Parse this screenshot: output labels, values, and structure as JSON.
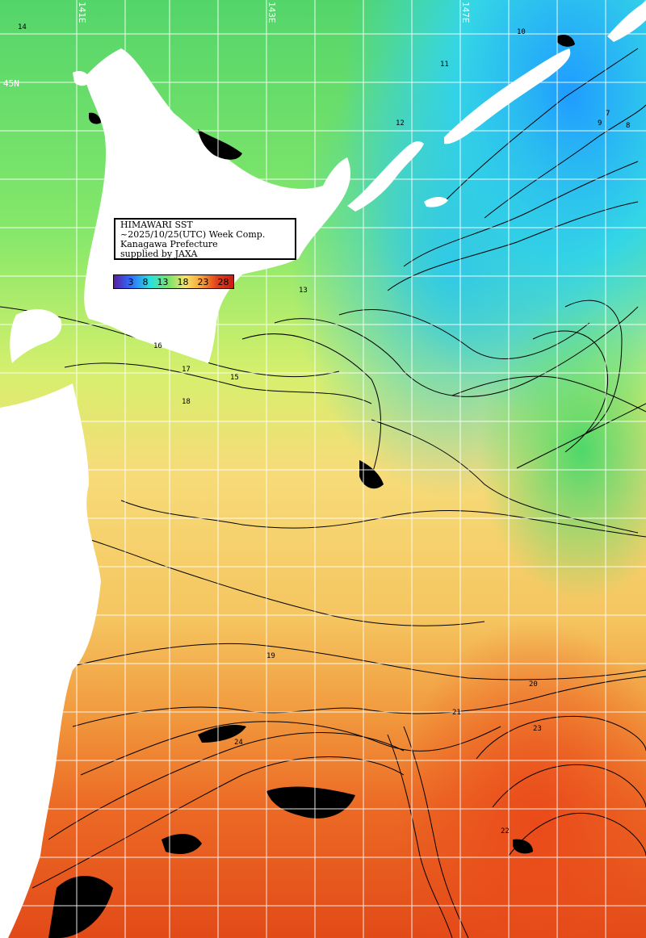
{
  "map": {
    "title_lines": [
      "HIMAWARI SST",
      "~2025/10/25(UTC) Week Comp.",
      "Kanagawa Prefecture",
      "supplied by JAXA"
    ],
    "legend": {
      "labels": [
        "3",
        "8",
        "13",
        "18",
        "23",
        "28"
      ],
      "colors": [
        "#5a1ea0",
        "#2f6cff",
        "#26e0e0",
        "#7ae36a",
        "#f7e36b",
        "#f7a83a",
        "#e2401a",
        "#c81c14"
      ]
    },
    "longitude_labels": [
      "141E",
      "143E",
      "147E"
    ],
    "latitude_labels": [
      "45N"
    ],
    "contour_labels": [
      "14",
      "13",
      "11",
      "10",
      "9",
      "8",
      "7",
      "12",
      "15",
      "16",
      "17",
      "18",
      "19",
      "20",
      "21",
      "22",
      "23",
      "24"
    ]
  }
}
